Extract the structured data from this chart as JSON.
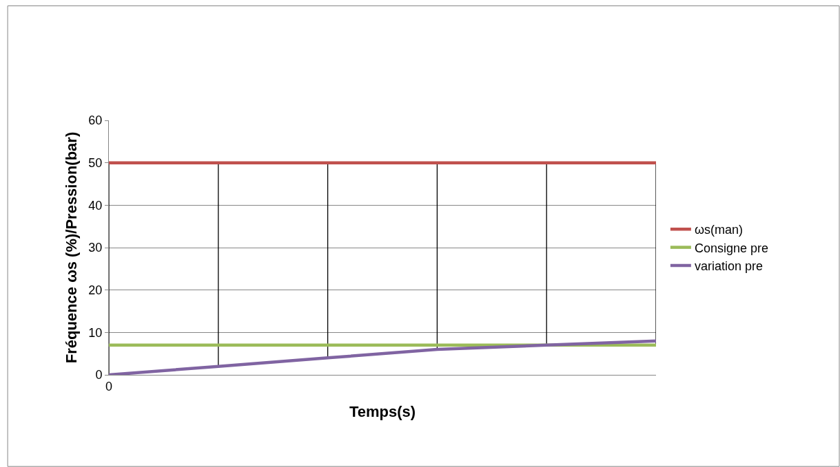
{
  "chart_data": {
    "type": "line",
    "xlabel": "Temps(s)",
    "ylabel": "Fréquence ωs (%)/Pression(bar)",
    "categories": [
      "0",
      null,
      null,
      null,
      null,
      null
    ],
    "series": [
      {
        "name": "ωs(man)",
        "color": "#c0504d",
        "values": [
          50,
          50,
          50,
          50,
          50,
          50
        ]
      },
      {
        "name": "Consigne pre",
        "color": "#9bbb59",
        "values": [
          7,
          7,
          7,
          7,
          7,
          7
        ]
      },
      {
        "name": "variation pre",
        "color": "#8064a2",
        "values": [
          0,
          2,
          4,
          6,
          7,
          8
        ]
      }
    ],
    "ylim": [
      0,
      60
    ],
    "yticks": [
      0,
      10,
      20,
      30,
      40,
      50,
      60
    ],
    "grid": true,
    "legend": "right",
    "marker": "none",
    "line_style": "solid"
  }
}
